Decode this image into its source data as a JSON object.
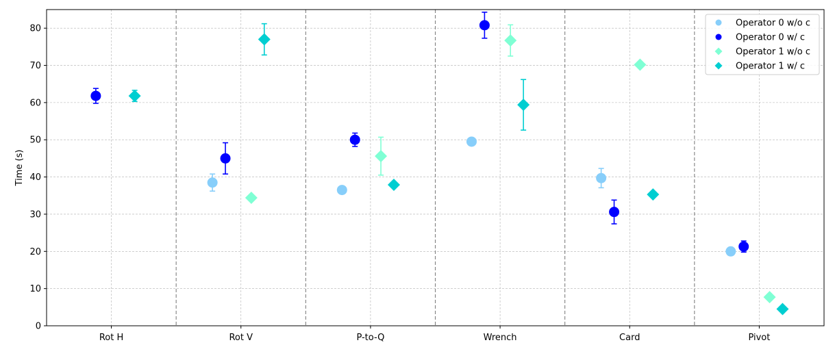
{
  "chart_data": {
    "type": "scatter",
    "title": "",
    "xlabel": "",
    "ylabel": "Time (s)",
    "ylim": [
      0,
      85
    ],
    "yticks": [
      0,
      10,
      20,
      30,
      40,
      50,
      60,
      70,
      80
    ],
    "grid": true,
    "legend_position": "top-right",
    "categories": [
      "Rot H",
      "Rot V",
      "P-to-Q",
      "Wrench",
      "Card",
      "Pivot"
    ],
    "series": [
      {
        "name": "Operator 0 w/o c",
        "marker": "circle",
        "color": "#87cefa",
        "values": [
          null,
          38.5,
          36.5,
          49.5,
          39.7,
          20.0
        ],
        "errors": [
          null,
          2.3,
          0,
          0,
          2.6,
          0
        ]
      },
      {
        "name": "Operator 0 w/ c",
        "marker": "circle",
        "color": "#0000ff",
        "values": [
          61.8,
          45.0,
          50.0,
          80.8,
          30.6,
          21.3
        ],
        "errors": [
          2.0,
          4.2,
          1.8,
          3.5,
          3.2,
          1.5
        ]
      },
      {
        "name": "Operator 1 w/o c",
        "marker": "diamond",
        "color": "#7fffd4",
        "values": [
          null,
          34.4,
          45.6,
          76.7,
          70.2,
          7.7
        ],
        "errors": [
          null,
          0,
          5.1,
          4.2,
          0,
          0
        ]
      },
      {
        "name": "Operator 1 w/ c",
        "marker": "diamond",
        "color": "#00ced1",
        "values": [
          61.8,
          77.0,
          37.9,
          59.4,
          35.3,
          4.5
        ],
        "errors": [
          1.5,
          4.2,
          0,
          6.8,
          0,
          0
        ]
      }
    ]
  }
}
